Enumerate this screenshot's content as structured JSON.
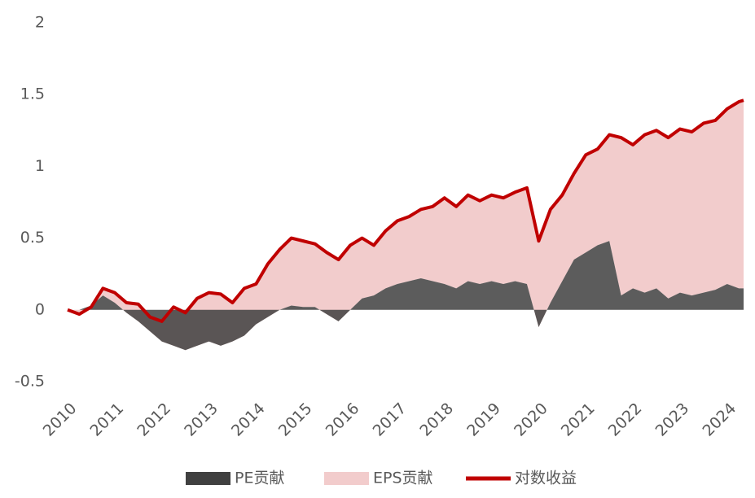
{
  "chart_data": {
    "type": "area",
    "x": [
      2010,
      2010.25,
      2010.5,
      2010.75,
      2011,
      2011.25,
      2011.5,
      2011.75,
      2012,
      2012.25,
      2012.5,
      2012.75,
      2013,
      2013.25,
      2013.5,
      2013.75,
      2014,
      2014.25,
      2014.5,
      2014.75,
      2015,
      2015.25,
      2015.5,
      2015.75,
      2016,
      2016.25,
      2016.5,
      2016.75,
      2017,
      2017.25,
      2017.5,
      2017.75,
      2018,
      2018.25,
      2018.5,
      2018.75,
      2019,
      2019.25,
      2019.5,
      2019.75,
      2020,
      2020.25,
      2020.5,
      2020.75,
      2021,
      2021.25,
      2021.5,
      2021.75,
      2022,
      2022.25,
      2022.5,
      2022.75,
      2023,
      2023.25,
      2023.5,
      2023.75,
      2024,
      2024.25,
      2024.35
    ],
    "series": [
      {
        "name": "PE贡献",
        "color": "#404040",
        "values": [
          0,
          0,
          0.03,
          0.1,
          0.05,
          -0.02,
          -0.08,
          -0.15,
          -0.22,
          -0.25,
          -0.28,
          -0.25,
          -0.22,
          -0.25,
          -0.22,
          -0.18,
          -0.1,
          -0.05,
          0,
          0.03,
          0.02,
          0.02,
          -0.03,
          -0.08,
          0,
          0.08,
          0.1,
          0.15,
          0.18,
          0.2,
          0.22,
          0.2,
          0.18,
          0.15,
          0.2,
          0.18,
          0.2,
          0.18,
          0.2,
          0.18,
          -0.12,
          0.05,
          0.2,
          0.35,
          0.4,
          0.45,
          0.48,
          0.1,
          0.15,
          0.12,
          0.15,
          0.08,
          0.12,
          0.1,
          0.12,
          0.14,
          0.18,
          0.15,
          0.15
        ]
      },
      {
        "name": "EPS贡献",
        "color": "#f2cccc",
        "values": [
          0,
          -0.03,
          -0.01,
          0.05,
          0.07,
          0.07,
          0.12,
          0.1,
          0.14,
          0.27,
          0.26,
          0.33,
          0.34,
          0.36,
          0.27,
          0.33,
          0.28,
          0.37,
          0.42,
          0.47,
          0.46,
          0.44,
          0.43,
          0.43,
          0.45,
          0.42,
          0.35,
          0.4,
          0.44,
          0.45,
          0.48,
          0.52,
          0.6,
          0.57,
          0.6,
          0.58,
          0.6,
          0.6,
          0.62,
          0.67,
          0.6,
          0.65,
          0.6,
          0.6,
          0.68,
          0.67,
          0.74,
          1.1,
          1,
          1.1,
          1.1,
          1.12,
          1.14,
          1.14,
          1.18,
          1.18,
          1.22,
          1.3,
          1.31
        ]
      },
      {
        "name": "对数收益",
        "color": "#c00000",
        "values": [
          0,
          -0.03,
          0.02,
          0.15,
          0.12,
          0.05,
          0.04,
          -0.05,
          -0.08,
          0.02,
          -0.02,
          0.08,
          0.12,
          0.11,
          0.05,
          0.15,
          0.18,
          0.32,
          0.42,
          0.5,
          0.48,
          0.46,
          0.4,
          0.35,
          0.45,
          0.5,
          0.45,
          0.55,
          0.62,
          0.65,
          0.7,
          0.72,
          0.78,
          0.72,
          0.8,
          0.76,
          0.8,
          0.78,
          0.82,
          0.85,
          0.48,
          0.7,
          0.8,
          0.95,
          1.08,
          1.12,
          1.22,
          1.2,
          1.15,
          1.22,
          1.25,
          1.2,
          1.26,
          1.24,
          1.3,
          1.32,
          1.4,
          1.45,
          1.46
        ]
      }
    ],
    "xlim": [
      2010,
      2024.35
    ],
    "xticks": [
      2010,
      2011,
      2012,
      2013,
      2014,
      2015,
      2016,
      2017,
      2018,
      2019,
      2020,
      2021,
      2022,
      2023,
      2024
    ],
    "ylim": [
      -0.5,
      2
    ],
    "yticks": [
      -0.5,
      0,
      0.5,
      1,
      1.5,
      2
    ]
  }
}
